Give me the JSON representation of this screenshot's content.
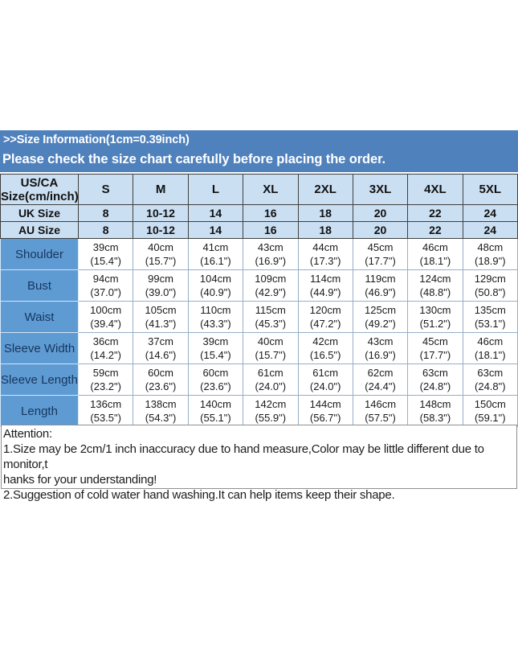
{
  "banner": {
    "line1": ">>Size Information(1cm=0.39inch)",
    "line2": "Please check the size chart carefully before placing the order."
  },
  "size_table": {
    "corner_header": [
      "US/CA",
      "Size(cm/inch)"
    ],
    "size_columns": [
      "S",
      "M",
      "L",
      "XL",
      "2XL",
      "3XL",
      "4XL",
      "5XL"
    ],
    "uk_row": {
      "label": "UK Size",
      "values": [
        "8",
        "10-12",
        "14",
        "16",
        "18",
        "20",
        "22",
        "24"
      ]
    },
    "au_row": {
      "label": "AU Size",
      "values": [
        "8",
        "10-12",
        "14",
        "16",
        "18",
        "20",
        "22",
        "24"
      ]
    },
    "measurement_rows": [
      {
        "label": "Shoulder",
        "cm": [
          "39cm",
          "40cm",
          "41cm",
          "43cm",
          "44cm",
          "45cm",
          "46cm",
          "48cm"
        ],
        "inch": [
          "(15.4\")",
          "(15.7\")",
          "(16.1\")",
          "(16.9\")",
          "(17.3\")",
          "(17.7\")",
          "(18.1\")",
          "(18.9\")"
        ]
      },
      {
        "label": "Bust",
        "cm": [
          "94cm",
          "99cm",
          "104cm",
          "109cm",
          "114cm",
          "119cm",
          "124cm",
          "129cm"
        ],
        "inch": [
          "(37.0\")",
          "(39.0\")",
          "(40.9\")",
          "(42.9\")",
          "(44.9\")",
          "(46.9\")",
          "(48.8\")",
          "(50.8\")"
        ]
      },
      {
        "label": "Waist",
        "cm": [
          "100cm",
          "105cm",
          "110cm",
          "115cm",
          "120cm",
          "125cm",
          "130cm",
          "135cm"
        ],
        "inch": [
          "(39.4\")",
          "(41.3\")",
          "(43.3\")",
          "(45.3\")",
          "(47.2\")",
          "(49.2\")",
          "(51.2\")",
          "(53.1\")"
        ]
      },
      {
        "label": "Sleeve Width",
        "cm": [
          "36cm",
          "37cm",
          "39cm",
          "40cm",
          "42cm",
          "43cm",
          "45cm",
          "46cm"
        ],
        "inch": [
          "(14.2\")",
          "(14.6\")",
          "(15.4\")",
          "(15.7\")",
          "(16.5\")",
          "(16.9\")",
          "(17.7\")",
          "(18.1\")"
        ]
      },
      {
        "label": "Sleeve Length",
        "cm": [
          "59cm",
          "60cm",
          "60cm",
          "61cm",
          "61cm",
          "62cm",
          "63cm",
          "63cm"
        ],
        "inch": [
          "(23.2\")",
          "(23.6\")",
          "(23.6\")",
          "(24.0\")",
          "(24.0\")",
          "(24.4\")",
          "(24.8\")",
          "(24.8\")"
        ]
      },
      {
        "label": "Length",
        "cm": [
          "136cm",
          "138cm",
          "140cm",
          "142cm",
          "144cm",
          "146cm",
          "148cm",
          "150cm"
        ],
        "inch": [
          "(53.5\")",
          "(54.3\")",
          "(55.1\")",
          "(55.9\")",
          "(56.7\")",
          "(57.5\")",
          "(58.3\")",
          "(59.1\")"
        ]
      }
    ]
  },
  "attention": {
    "title": "Attention:",
    "lines": [
      "1.Size may be 2cm/1 inch inaccuracy due to hand measure,Color may be little different due to monitor,t",
      "hanks for your understanding!",
      "2.Suggestion of cold water hand washing.It can help items keep their shape."
    ]
  },
  "colors": {
    "banner_blue": "#4f81bd",
    "header_blue": "#cbdff2",
    "label_blue": "#5e9bd3"
  }
}
